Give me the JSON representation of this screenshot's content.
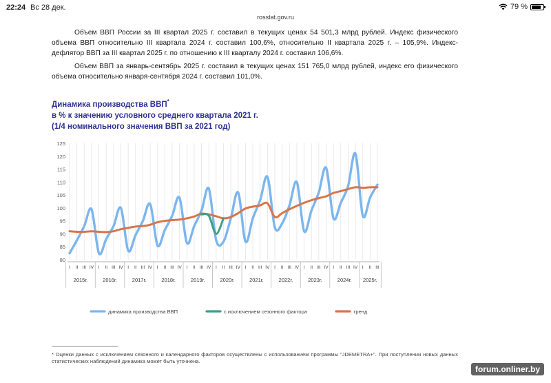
{
  "status": {
    "time": "22:24",
    "date": "Вс 28 дек.",
    "url": "rosstat.gov.ru",
    "battery": "79 %",
    "battery_level": 0.79
  },
  "text": {
    "p1": "Объем ВВП России за III квартал 2025 г. составил в текущих ценах 54 501,3 млрд рублей. Индекс физического объема ВВП относительно III квартала 2024 г. составил 100,6%, относительно II квартала 2025 г. – 105,9%. Индекс-дефлятор ВВП за III квартал 2025 г. по отношению к III кварталу 2024 г. составил 106,6%.",
    "p2": "Объем ВВП за январь-сентябрь 2025 г. составил в текущих ценах 151 765,0 млрд рублей, индекс его физического объема относительно января-сентября 2024 г. составил 101,0%."
  },
  "chart_title": {
    "line1": "Динамика производства ВВП",
    "footnote_mark": "*",
    "line2": "в % к значению условного среднего квартала 2021 г.",
    "line3": "(1/4 номинального значения ВВП за 2021 год)"
  },
  "chart_data": {
    "type": "line",
    "ylim": [
      80,
      125
    ],
    "yticks": [
      80,
      85,
      90,
      95,
      100,
      105,
      110,
      115,
      120,
      125
    ],
    "grid": "vertical",
    "quarter_labels": [
      "I",
      "II",
      "III",
      "IV"
    ],
    "years": [
      "2015г.",
      "2016г.",
      "2017г.",
      "2018г.",
      "2019г.",
      "2020г.",
      "2021г.",
      "2022г.",
      "2023г.",
      "2024г.",
      "2025г."
    ],
    "last_year_quarters": 3,
    "series": [
      {
        "name": "динамика производства ВВП",
        "color": "#7cb6ee",
        "values": [
          82.5,
          87.5,
          93.0,
          99.5,
          82.5,
          88.0,
          93.0,
          100.0,
          83.5,
          89.5,
          95.0,
          101.5,
          85.5,
          91.5,
          97.0,
          104.0,
          86.5,
          93.0,
          99.0,
          107.5,
          87.5,
          87.0,
          96.0,
          106.0,
          87.0,
          96.0,
          103.0,
          112.0,
          92.5,
          94.0,
          101.0,
          110.0,
          91.0,
          99.0,
          106.0,
          115.5,
          96.0,
          102.0,
          108.5,
          121.0,
          97.0,
          104.0,
          109.0
        ]
      },
      {
        "name": "с исключением сезонного фактора",
        "color": "#3e9e8e",
        "values": [
          null,
          null,
          null,
          null,
          null,
          null,
          null,
          null,
          null,
          null,
          null,
          null,
          null,
          null,
          null,
          null,
          null,
          null,
          97.5,
          97.0,
          90.0,
          96.0,
          null,
          null,
          null,
          null,
          null,
          null,
          null,
          null,
          null,
          null,
          null,
          null,
          null,
          null,
          null,
          null,
          null,
          null,
          null,
          null,
          null
        ]
      },
      {
        "name": "тренд",
        "color": "#d9744a",
        "values": [
          91.0,
          90.8,
          90.8,
          91.0,
          90.8,
          90.7,
          91.0,
          91.8,
          92.3,
          92.8,
          93.0,
          93.5,
          94.5,
          95.0,
          95.3,
          95.5,
          96.0,
          96.7,
          97.8,
          97.5,
          96.8,
          96.0,
          96.5,
          98.0,
          99.8,
          100.5,
          101.0,
          101.8,
          96.5,
          98.0,
          99.5,
          100.8,
          102.0,
          103.0,
          103.8,
          104.5,
          105.8,
          106.5,
          107.3,
          108.0,
          107.8,
          108.0,
          108.0
        ]
      }
    ]
  },
  "footnote": "* Оценки данных с исключением сезонного и календарного факторов осуществлены с использованием программы \"JDEMETRA+\". При поступлении новых данных статистических наблюдений динамика может быть уточнена.",
  "watermark": "forum.onliner.by"
}
